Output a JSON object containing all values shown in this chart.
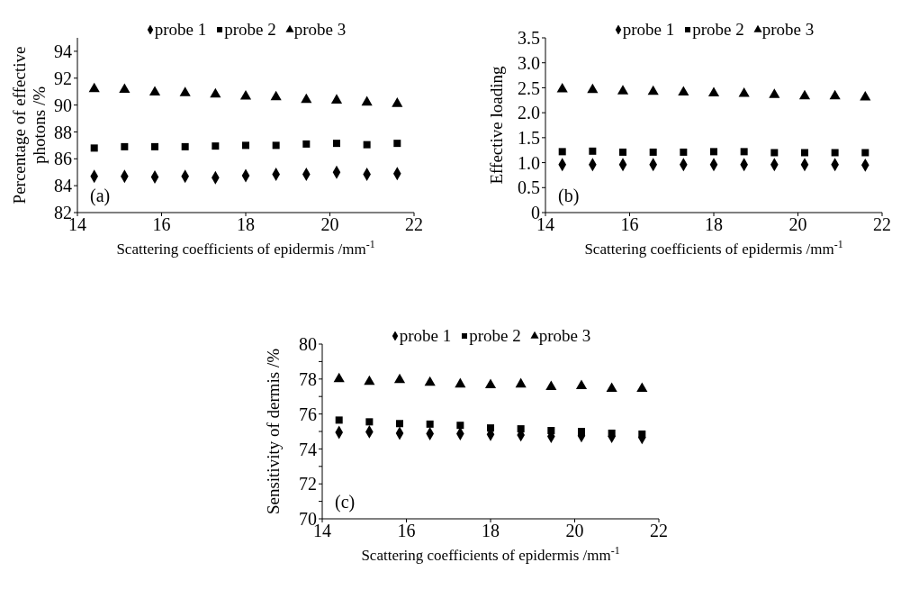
{
  "chart_data": [
    {
      "type": "scatter",
      "xlabel": "Scattering coefficients of epidermis /mm$^{-1}$",
      "ylabel": "Percentage of effective\nphotons /%",
      "annotations": [
        "(a)"
      ],
      "x": [
        14.4,
        15.12,
        15.84,
        16.56,
        17.28,
        18,
        18.72,
        19.44,
        20.16,
        20.88,
        21.6
      ],
      "xlim": [
        14,
        22
      ],
      "xticks": [
        14,
        16,
        18,
        20,
        22
      ],
      "ylim": [
        82,
        95
      ],
      "yticks": [
        82,
        84,
        86,
        88,
        90,
        92,
        94
      ],
      "legend": "top",
      "grid": false,
      "series": [
        {
          "name": "probe 1",
          "color": "#000000",
          "marker": "diamond",
          "values": [
            84.7,
            84.7,
            84.65,
            84.7,
            84.6,
            84.75,
            84.85,
            84.85,
            85.0,
            84.85,
            84.9
          ]
        },
        {
          "name": "probe 2",
          "color": "#000000",
          "marker": "square",
          "values": [
            86.8,
            86.9,
            86.9,
            86.9,
            86.95,
            87.0,
            87.0,
            87.1,
            87.15,
            87.05,
            87.15
          ]
        },
        {
          "name": "probe 3",
          "color": "#000000",
          "marker": "triangle",
          "values": [
            91.2,
            91.15,
            90.95,
            90.9,
            90.8,
            90.65,
            90.6,
            90.4,
            90.35,
            90.2,
            90.1
          ]
        }
      ]
    },
    {
      "type": "scatter",
      "xlabel": "Scattering coefficients of epidermis /mm$^{-1}$",
      "ylabel": "Effective loading",
      "annotations": [
        "(b)"
      ],
      "x": [
        14.4,
        15.12,
        15.84,
        16.56,
        17.28,
        18,
        18.72,
        19.44,
        20.16,
        20.88,
        21.6
      ],
      "xlim": [
        14,
        22
      ],
      "xticks": [
        14,
        16,
        18,
        20,
        22
      ],
      "ylim": [
        0,
        3.5
      ],
      "yticks": [
        0,
        {
          "value": 0.5,
          "label": "0.5"
        },
        {
          "value": 1,
          "label": "1.0"
        },
        {
          "value": 1.5,
          "label": "1.5"
        },
        {
          "value": 2,
          "label": "2.0"
        },
        {
          "value": 2.5,
          "label": "2.5"
        },
        {
          "value": 3,
          "label": "3.0"
        },
        {
          "value": 3.5,
          "label": "3.5"
        }
      ],
      "legend": "top",
      "grid": false,
      "series": [
        {
          "name": "probe 1",
          "color": "#000000",
          "marker": "diamond",
          "values": [
            0.96,
            0.96,
            0.96,
            0.96,
            0.96,
            0.96,
            0.96,
            0.96,
            0.96,
            0.96,
            0.95
          ]
        },
        {
          "name": "probe 2",
          "color": "#000000",
          "marker": "square",
          "values": [
            1.22,
            1.23,
            1.21,
            1.21,
            1.21,
            1.22,
            1.22,
            1.2,
            1.2,
            1.2,
            1.2
          ]
        },
        {
          "name": "probe 3",
          "color": "#000000",
          "marker": "triangle",
          "values": [
            2.47,
            2.46,
            2.43,
            2.42,
            2.41,
            2.39,
            2.38,
            2.36,
            2.33,
            2.33,
            2.31
          ]
        }
      ]
    },
    {
      "type": "scatter",
      "xlabel": "Scattering coefficients of epidermis /mm$^{-1}$",
      "ylabel": "Sensitivity of dermis /%",
      "annotations": [
        "(c)"
      ],
      "x": [
        14.4,
        15.12,
        15.84,
        16.56,
        17.28,
        18,
        18.72,
        19.44,
        20.16,
        20.88,
        21.6
      ],
      "xlim": [
        14,
        22
      ],
      "xticks": [
        14,
        16,
        18,
        20,
        22
      ],
      "ylim": [
        70,
        80
      ],
      "yticks": [
        70,
        {
          "value": 71,
          "label": null
        },
        72,
        {
          "value": 73,
          "label": null
        },
        74,
        {
          "value": 75,
          "label": null
        },
        76,
        {
          "value": 77,
          "label": null
        },
        78,
        {
          "value": 79,
          "label": null
        },
        80
      ],
      "legend": "top",
      "grid": false,
      "series": [
        {
          "name": "probe 1",
          "color": "#000000",
          "marker": "diamond",
          "values": [
            74.95,
            74.98,
            74.9,
            74.87,
            74.87,
            74.83,
            74.8,
            74.72,
            74.75,
            74.72,
            74.65
          ]
        },
        {
          "name": "probe 2",
          "color": "#000000",
          "marker": "square",
          "values": [
            75.65,
            75.55,
            75.45,
            75.42,
            75.35,
            75.2,
            75.15,
            75.05,
            75.0,
            74.9,
            74.85
          ]
        },
        {
          "name": "probe 3",
          "color": "#000000",
          "marker": "triangle",
          "values": [
            78.0,
            77.85,
            77.95,
            77.8,
            77.7,
            77.65,
            77.7,
            77.55,
            77.6,
            77.45,
            77.45
          ]
        }
      ]
    }
  ]
}
